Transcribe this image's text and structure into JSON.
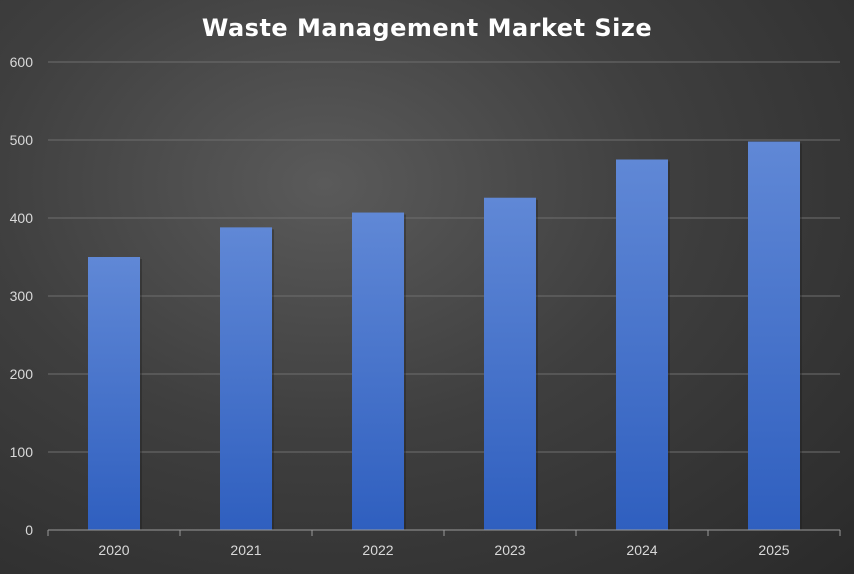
{
  "chart_data": {
    "type": "bar",
    "title": "Waste Management Market Size",
    "categories": [
      "2020",
      "2021",
      "2022",
      "2023",
      "2024",
      "2025"
    ],
    "values": [
      350,
      388,
      407,
      426,
      475,
      498
    ],
    "ylim": [
      0,
      600
    ],
    "yticks": [
      0,
      100,
      200,
      300,
      400,
      500,
      600
    ],
    "grid": true,
    "legend": "none",
    "colors": {
      "bar_top": "#6088d6",
      "bar_bottom": "#2f5fbf"
    }
  }
}
